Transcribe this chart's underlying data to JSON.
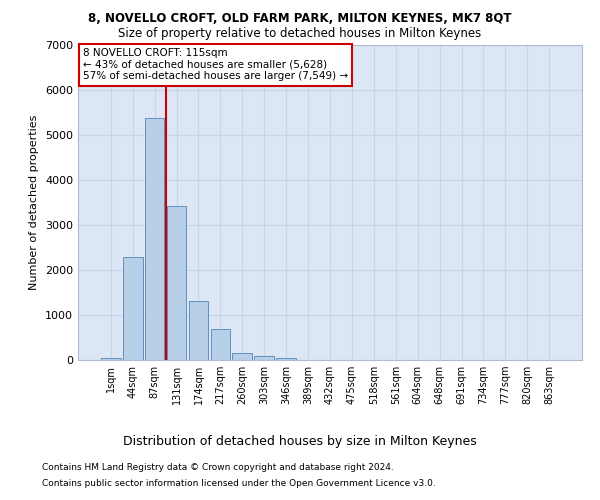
{
  "title1": "8, NOVELLO CROFT, OLD FARM PARK, MILTON KEYNES, MK7 8QT",
  "title2": "Size of property relative to detached houses in Milton Keynes",
  "xlabel": "Distribution of detached houses by size in Milton Keynes",
  "ylabel": "Number of detached properties",
  "footer1": "Contains HM Land Registry data © Crown copyright and database right 2024.",
  "footer2": "Contains public sector information licensed under the Open Government Licence v3.0.",
  "annotation_line1": "8 NOVELLO CROFT: 115sqm",
  "annotation_line2": "← 43% of detached houses are smaller (5,628)",
  "annotation_line3": "57% of semi-detached houses are larger (7,549) →",
  "bar_color": "#b8cfe8",
  "bar_edge_color": "#6090c0",
  "grid_color": "#c8d4e8",
  "background_color": "#dce6f4",
  "vline_color": "#cc0000",
  "annotation_box_color": "#ffffff",
  "annotation_box_edge": "#cc0000",
  "categories": [
    "1sqm",
    "44sqm",
    "87sqm",
    "131sqm",
    "174sqm",
    "217sqm",
    "260sqm",
    "303sqm",
    "346sqm",
    "389sqm",
    "432sqm",
    "475sqm",
    "518sqm",
    "561sqm",
    "604sqm",
    "648sqm",
    "691sqm",
    "734sqm",
    "777sqm",
    "820sqm",
    "863sqm"
  ],
  "values": [
    50,
    2280,
    5380,
    3420,
    1310,
    700,
    160,
    90,
    35,
    8,
    2,
    0,
    0,
    0,
    0,
    0,
    0,
    0,
    0,
    0,
    0
  ],
  "vline_x": 2.5,
  "ylim": [
    0,
    7000
  ],
  "yticks": [
    0,
    1000,
    2000,
    3000,
    4000,
    5000,
    6000,
    7000
  ]
}
